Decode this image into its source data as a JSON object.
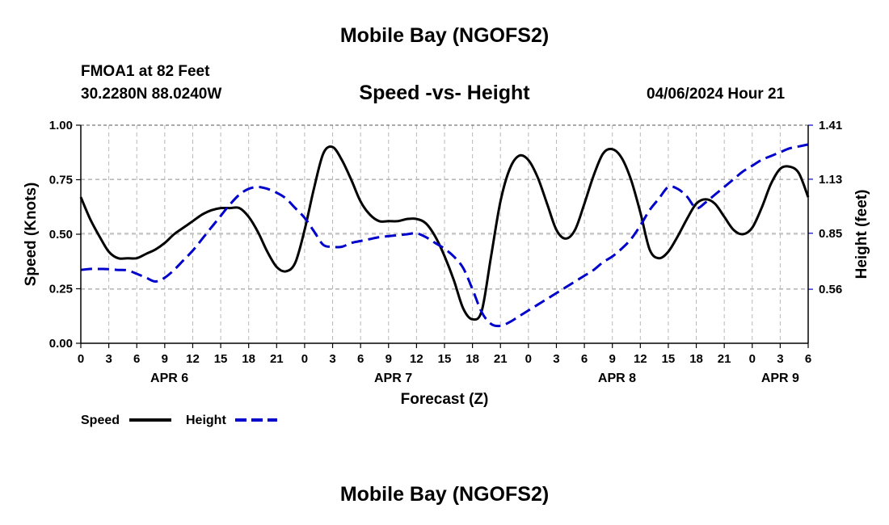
{
  "page": {
    "title": "Mobile Bay (NGOFS2)",
    "title_repeat": "Mobile Bay (NGOFS2)",
    "station": "FMOA1 at 82 Feet",
    "coords": "30.2280N  88.0240W",
    "subtitle": "Speed -vs- Height",
    "timestamp": "04/06/2024 Hour 21"
  },
  "chart_data": {
    "type": "line",
    "title": "Speed -vs- Height",
    "xlabel": "Forecast (Z)",
    "ylabel": "Speed (Knots)",
    "ylabel_right": "Height (feet)",
    "x_range": [
      0,
      78
    ],
    "ylim": [
      0,
      1
    ],
    "ylim_right": [
      0.28,
      1.41
    ],
    "y_ticks": [
      "0.00",
      "0.25",
      "0.50",
      "0.75",
      "1.00"
    ],
    "y_ticks_right": [
      "0.56",
      "0.85",
      "1.13",
      "1.41"
    ],
    "y_ticks_right_values": [
      0.56,
      0.85,
      1.13,
      1.41
    ],
    "x_tick_labels": [
      "0",
      "3",
      "6",
      "9",
      "12",
      "15",
      "18",
      "21",
      "0",
      "3",
      "6",
      "9",
      "12",
      "15",
      "18",
      "21",
      "0",
      "3",
      "6",
      "9",
      "12",
      "15",
      "18",
      "21",
      "0",
      "3",
      "6"
    ],
    "day_labels": [
      {
        "label": "APR 6",
        "x": 9.5
      },
      {
        "label": "APR 7",
        "x": 33.5
      },
      {
        "label": "APR 8",
        "x": 57.5
      },
      {
        "label": "APR 9",
        "x": 75
      }
    ],
    "grid": true,
    "legend": "bottom-left",
    "legend_items": [
      "Speed",
      "Height"
    ],
    "series": [
      {
        "name": "Speed",
        "axis": "left",
        "color": "#000000",
        "dash": "solid",
        "x": [
          0,
          1,
          2,
          3,
          4,
          5,
          6,
          7,
          8,
          9,
          10,
          11,
          12,
          13,
          14,
          15,
          16,
          17,
          18,
          19,
          20,
          21,
          22,
          23,
          24,
          25,
          26,
          27,
          28,
          29,
          30,
          31,
          32,
          33,
          34,
          35,
          36,
          37,
          38,
          39,
          40,
          41,
          42,
          43,
          44,
          45,
          46,
          47,
          48,
          49,
          50,
          51,
          52,
          53,
          54,
          55,
          56,
          57,
          58,
          59,
          60,
          61,
          62,
          63,
          64,
          65,
          66,
          67,
          68,
          69,
          70,
          71,
          72,
          73,
          74,
          75,
          76,
          77,
          78
        ],
        "values": [
          0.67,
          0.57,
          0.49,
          0.42,
          0.39,
          0.39,
          0.39,
          0.41,
          0.43,
          0.46,
          0.5,
          0.53,
          0.56,
          0.59,
          0.61,
          0.62,
          0.62,
          0.62,
          0.58,
          0.51,
          0.42,
          0.35,
          0.33,
          0.37,
          0.52,
          0.71,
          0.87,
          0.9,
          0.84,
          0.75,
          0.65,
          0.59,
          0.56,
          0.56,
          0.56,
          0.57,
          0.57,
          0.55,
          0.49,
          0.4,
          0.29,
          0.16,
          0.11,
          0.15,
          0.4,
          0.65,
          0.8,
          0.86,
          0.84,
          0.76,
          0.64,
          0.52,
          0.48,
          0.52,
          0.64,
          0.77,
          0.87,
          0.89,
          0.85,
          0.75,
          0.6,
          0.43,
          0.39,
          0.42,
          0.49,
          0.57,
          0.64,
          0.66,
          0.64,
          0.58,
          0.52,
          0.5,
          0.53,
          0.62,
          0.73,
          0.8,
          0.81,
          0.78,
          0.67
        ]
      },
      {
        "name": "Height",
        "axis": "right",
        "color": "#0000cc",
        "dash": "dashed",
        "x": [
          0,
          1,
          2,
          3,
          4,
          5,
          6,
          7,
          8,
          9,
          10,
          11,
          12,
          13,
          14,
          15,
          16,
          17,
          18,
          19,
          20,
          21,
          22,
          23,
          24,
          25,
          26,
          27,
          28,
          29,
          30,
          31,
          32,
          33,
          34,
          35,
          36,
          37,
          38,
          39,
          40,
          41,
          42,
          43,
          44,
          45,
          46,
          47,
          48,
          49,
          50,
          51,
          52,
          53,
          54,
          55,
          56,
          57,
          58,
          59,
          60,
          61,
          62,
          63,
          64,
          65,
          66,
          67,
          68,
          69,
          70,
          71,
          72,
          73,
          74,
          75,
          76,
          77,
          78
        ],
        "values": [
          0.66,
          0.665,
          0.665,
          0.664,
          0.66,
          0.658,
          0.64,
          0.62,
          0.6,
          0.62,
          0.66,
          0.71,
          0.76,
          0.82,
          0.88,
          0.94,
          1.0,
          1.05,
          1.08,
          1.09,
          1.08,
          1.06,
          1.03,
          0.98,
          0.93,
          0.86,
          0.79,
          0.78,
          0.78,
          0.8,
          0.81,
          0.82,
          0.83,
          0.835,
          0.84,
          0.845,
          0.85,
          0.83,
          0.8,
          0.77,
          0.73,
          0.67,
          0.56,
          0.44,
          0.38,
          0.37,
          0.39,
          0.42,
          0.45,
          0.48,
          0.51,
          0.54,
          0.57,
          0.6,
          0.63,
          0.66,
          0.7,
          0.73,
          0.77,
          0.82,
          0.89,
          0.97,
          1.03,
          1.09,
          1.08,
          1.04,
          0.98,
          1.01,
          1.05,
          1.09,
          1.13,
          1.17,
          1.2,
          1.23,
          1.25,
          1.27,
          1.29,
          1.3,
          1.31
        ]
      }
    ]
  }
}
